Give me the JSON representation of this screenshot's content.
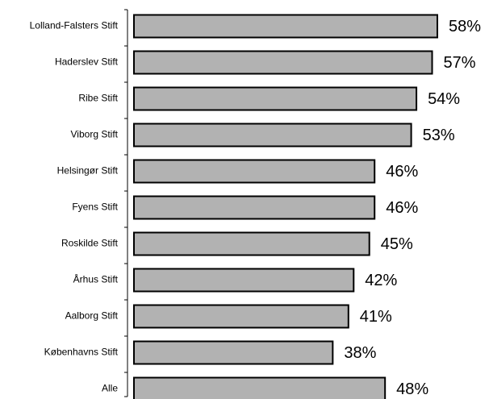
{
  "chart_data": {
    "type": "bar",
    "orientation": "horizontal",
    "categories": [
      "Lolland-Falsters Stift",
      "Haderslev Stift",
      "Ribe Stift",
      "Viborg Stift",
      "Helsingør Stift",
      "Fyens Stift",
      "Roskilde Stift",
      "Århus Stift",
      "Aalborg Stift",
      "Københavns Stift",
      "Alle"
    ],
    "values": [
      58,
      57,
      54,
      53,
      46,
      46,
      45,
      42,
      41,
      38,
      48
    ],
    "value_labels": [
      "58%",
      "57%",
      "54%",
      "53%",
      "46%",
      "46%",
      "45%",
      "42%",
      "41%",
      "38%",
      "48%"
    ],
    "title": "",
    "xlabel": "",
    "ylabel": "",
    "xlim": [
      0,
      58
    ],
    "grid": false,
    "legend": "none",
    "colors": {
      "bar_fill": "#b2b2b2",
      "bar_stroke": "#000000"
    }
  }
}
